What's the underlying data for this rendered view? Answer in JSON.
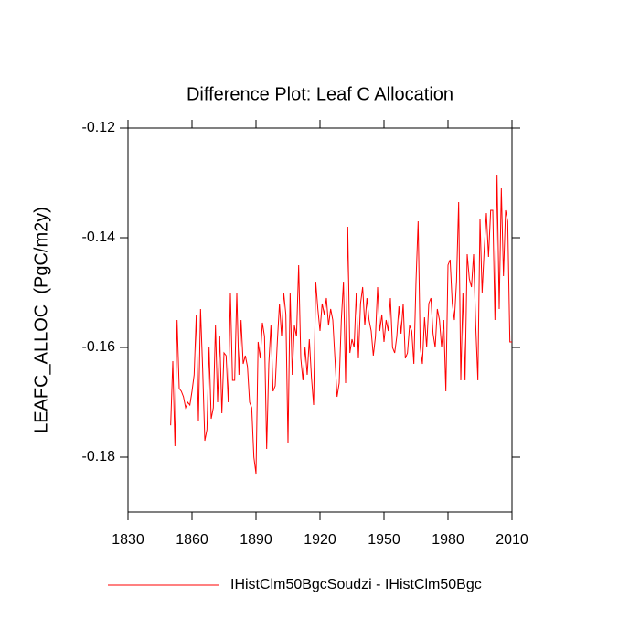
{
  "chart_data": {
    "type": "line",
    "title": "Difference Plot: Leaf C Allocation",
    "y_label": "LEAFC_ALLOC  (PgC/m2y)",
    "x": [
      1850,
      1851,
      1852,
      1853,
      1854,
      1855,
      1856,
      1857,
      1858,
      1859,
      1860,
      1861,
      1862,
      1863,
      1864,
      1865,
      1866,
      1867,
      1868,
      1869,
      1870,
      1871,
      1872,
      1873,
      1874,
      1875,
      1876,
      1877,
      1878,
      1879,
      1880,
      1881,
      1882,
      1883,
      1884,
      1885,
      1886,
      1887,
      1888,
      1889,
      1890,
      1891,
      1892,
      1893,
      1894,
      1895,
      1896,
      1897,
      1898,
      1899,
      1900,
      1901,
      1902,
      1903,
      1904,
      1905,
      1906,
      1907,
      1908,
      1909,
      1910,
      1911,
      1912,
      1913,
      1914,
      1915,
      1916,
      1917,
      1918,
      1919,
      1920,
      1921,
      1922,
      1923,
      1924,
      1925,
      1926,
      1927,
      1928,
      1929,
      1930,
      1931,
      1932,
      1933,
      1934,
      1935,
      1936,
      1937,
      1938,
      1939,
      1940,
      1941,
      1942,
      1943,
      1944,
      1945,
      1946,
      1947,
      1948,
      1949,
      1950,
      1951,
      1952,
      1953,
      1954,
      1955,
      1956,
      1957,
      1958,
      1959,
      1960,
      1961,
      1962,
      1963,
      1964,
      1965,
      1966,
      1967,
      1968,
      1969,
      1970,
      1971,
      1972,
      1973,
      1974,
      1975,
      1976,
      1977,
      1978,
      1979,
      1980,
      1981,
      1982,
      1983,
      1984,
      1985,
      1986,
      1987,
      1988,
      1989,
      1990,
      1991,
      1992,
      1993,
      1994,
      1995,
      1996,
      1997,
      1998,
      1999,
      2000,
      2001,
      2002,
      2003,
      2004,
      2005,
      2006,
      2007,
      2008,
      2009,
      2010
    ],
    "series": [
      {
        "name": "IHistClm50BgcSoudzi - IHistClm50Bgc",
        "color": "#ff0000",
        "values": [
          -0.1742,
          -0.1625,
          -0.178,
          -0.155,
          -0.1675,
          -0.168,
          -0.169,
          -0.171,
          -0.17,
          -0.1705,
          -0.168,
          -0.165,
          -0.154,
          -0.1735,
          -0.153,
          -0.164,
          -0.177,
          -0.175,
          -0.16,
          -0.173,
          -0.171,
          -0.156,
          -0.17,
          -0.158,
          -0.172,
          -0.161,
          -0.1615,
          -0.17,
          -0.15,
          -0.166,
          -0.166,
          -0.15,
          -0.165,
          -0.155,
          -0.163,
          -0.1615,
          -0.1635,
          -0.17,
          -0.171,
          -0.18,
          -0.183,
          -0.159,
          -0.162,
          -0.1555,
          -0.158,
          -0.1785,
          -0.163,
          -0.156,
          -0.168,
          -0.167,
          -0.159,
          -0.152,
          -0.158,
          -0.15,
          -0.154,
          -0.1775,
          -0.15,
          -0.165,
          -0.156,
          -0.158,
          -0.145,
          -0.162,
          -0.166,
          -0.16,
          -0.165,
          -0.1585,
          -0.1655,
          -0.1705,
          -0.148,
          -0.153,
          -0.157,
          -0.152,
          -0.154,
          -0.151,
          -0.156,
          -0.153,
          -0.155,
          -0.162,
          -0.169,
          -0.1665,
          -0.155,
          -0.148,
          -0.1665,
          -0.138,
          -0.161,
          -0.1585,
          -0.16,
          -0.15,
          -0.162,
          -0.152,
          -0.149,
          -0.156,
          -0.151,
          -0.155,
          -0.157,
          -0.1615,
          -0.158,
          -0.149,
          -0.157,
          -0.154,
          -0.159,
          -0.155,
          -0.157,
          -0.151,
          -0.16,
          -0.161,
          -0.158,
          -0.1525,
          -0.1575,
          -0.152,
          -0.162,
          -0.161,
          -0.156,
          -0.157,
          -0.163,
          -0.148,
          -0.137,
          -0.16,
          -0.163,
          -0.1545,
          -0.16,
          -0.152,
          -0.151,
          -0.1575,
          -0.16,
          -0.153,
          -0.155,
          -0.16,
          -0.155,
          -0.168,
          -0.145,
          -0.144,
          -0.152,
          -0.155,
          -0.148,
          -0.1335,
          -0.166,
          -0.15,
          -0.166,
          -0.143,
          -0.1475,
          -0.149,
          -0.143,
          -0.156,
          -0.166,
          -0.1365,
          -0.15,
          -0.142,
          -0.1355,
          -0.1435,
          -0.135,
          -0.135,
          -0.155,
          -0.1285,
          -0.153,
          -0.131,
          -0.147,
          -0.135,
          -0.137,
          -0.159,
          -0.159
        ]
      }
    ],
    "xlim": [
      1830,
      2010
    ],
    "xticks": [
      1830,
      1860,
      1890,
      1920,
      1950,
      1980,
      2010
    ],
    "ylim": [
      -0.19,
      -0.12
    ],
    "yticks": [
      -0.18,
      -0.16,
      -0.14,
      -0.12
    ],
    "grid": false,
    "legend": "bottom"
  }
}
